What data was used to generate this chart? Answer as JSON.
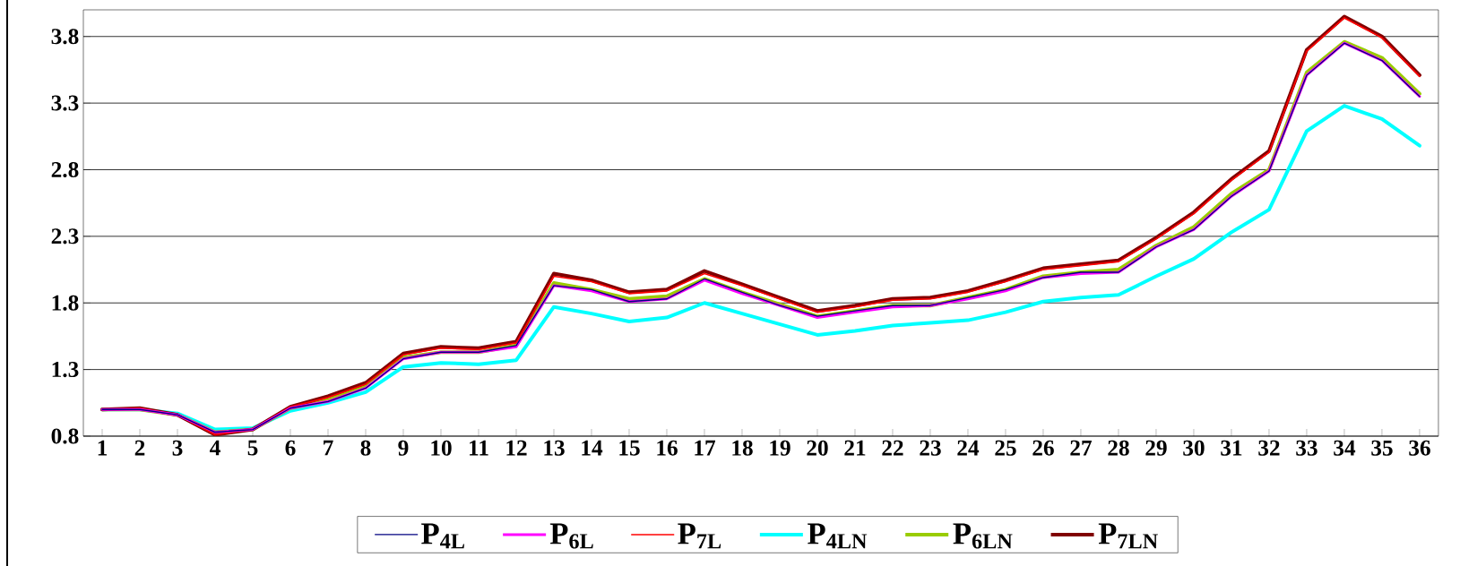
{
  "chart_data": {
    "type": "line",
    "categories": [
      "1",
      "2",
      "3",
      "4",
      "5",
      "6",
      "7",
      "8",
      "9",
      "10",
      "11",
      "12",
      "13",
      "14",
      "15",
      "16",
      "17",
      "18",
      "19",
      "20",
      "21",
      "22",
      "23",
      "24",
      "25",
      "26",
      "27",
      "28",
      "29",
      "30",
      "31",
      "32",
      "33",
      "34",
      "35",
      "36"
    ],
    "series": [
      {
        "name": "P$_{4L}$",
        "color": "#000080",
        "values": [
          1.0,
          1.0,
          0.96,
          0.83,
          0.85,
          1.01,
          1.06,
          1.16,
          1.38,
          1.43,
          1.43,
          1.48,
          1.93,
          1.9,
          1.81,
          1.83,
          1.98,
          1.88,
          1.78,
          1.7,
          1.74,
          1.78,
          1.78,
          1.84,
          1.9,
          1.99,
          2.03,
          2.03,
          2.22,
          2.35,
          2.6,
          2.79,
          3.51,
          3.75,
          3.62,
          3.35
        ]
      },
      {
        "name": "P$_{6L}$",
        "color": "#ff00ff",
        "values": [
          1.0,
          1.0,
          0.96,
          0.83,
          0.85,
          1.01,
          1.06,
          1.16,
          1.38,
          1.43,
          1.43,
          1.47,
          1.93,
          1.89,
          1.81,
          1.83,
          1.97,
          1.87,
          1.78,
          1.69,
          1.73,
          1.77,
          1.78,
          1.83,
          1.89,
          1.99,
          2.02,
          2.03,
          2.22,
          2.35,
          2.6,
          2.79,
          3.51,
          3.75,
          3.62,
          3.35
        ]
      },
      {
        "name": "P$_{7L}$",
        "color": "#ff0000",
        "values": [
          1.0,
          1.01,
          0.96,
          0.81,
          0.85,
          1.02,
          1.09,
          1.19,
          1.41,
          1.46,
          1.45,
          1.5,
          2.0,
          1.96,
          1.87,
          1.89,
          2.02,
          1.93,
          1.83,
          1.73,
          1.77,
          1.82,
          1.83,
          1.88,
          1.96,
          2.05,
          2.08,
          2.11,
          2.28,
          2.47,
          2.72,
          2.93,
          3.69,
          3.94,
          3.79,
          3.5
        ]
      },
      {
        "name": "P$_{4LN}$",
        "color": "#00ffff",
        "values": [
          1.0,
          1.0,
          0.97,
          0.85,
          0.86,
          0.99,
          1.05,
          1.13,
          1.32,
          1.35,
          1.34,
          1.37,
          1.77,
          1.72,
          1.66,
          1.69,
          1.8,
          1.72,
          1.64,
          1.56,
          1.59,
          1.63,
          1.65,
          1.67,
          1.73,
          1.81,
          1.84,
          1.86,
          2.0,
          2.13,
          2.33,
          2.5,
          3.09,
          3.28,
          3.18,
          2.98
        ]
      },
      {
        "name": "P$_{6LN}$",
        "color": "#99cc00",
        "values": [
          1.0,
          1.0,
          0.96,
          0.83,
          0.85,
          1.01,
          1.07,
          1.18,
          1.39,
          1.43,
          1.43,
          1.48,
          1.95,
          1.9,
          1.83,
          1.85,
          1.98,
          1.88,
          1.79,
          1.7,
          1.74,
          1.78,
          1.78,
          1.84,
          1.9,
          2.0,
          2.03,
          2.05,
          2.23,
          2.37,
          2.62,
          2.8,
          3.53,
          3.76,
          3.64,
          3.37
        ]
      },
      {
        "name": "P$_{7LN}$",
        "color": "#800000",
        "values": [
          1.0,
          1.01,
          0.96,
          0.81,
          0.85,
          1.02,
          1.1,
          1.2,
          1.42,
          1.47,
          1.46,
          1.51,
          2.02,
          1.97,
          1.88,
          1.9,
          2.04,
          1.94,
          1.84,
          1.74,
          1.78,
          1.83,
          1.84,
          1.89,
          1.97,
          2.06,
          2.09,
          2.12,
          2.29,
          2.48,
          2.73,
          2.94,
          3.7,
          3.95,
          3.8,
          3.51
        ]
      }
    ],
    "ylim": [
      0.8,
      4.0
    ],
    "yticks": [
      0.8,
      1.3,
      1.8,
      2.3,
      2.8,
      3.3,
      3.8
    ],
    "grid": "y",
    "legend": "bottom",
    "marker": "none",
    "line_style": "solid"
  }
}
